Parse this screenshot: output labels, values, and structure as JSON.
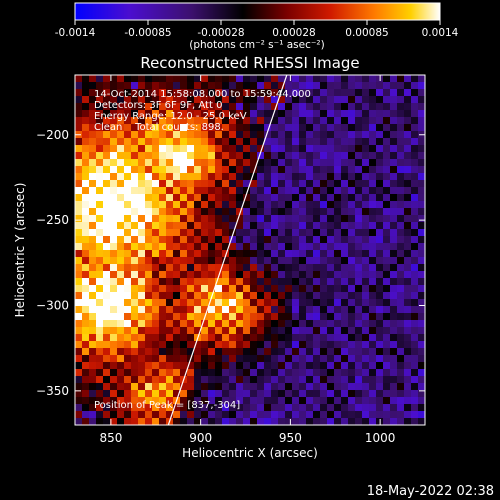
{
  "chart_data": {
    "type": "heatmap",
    "title": "Reconstructed RHESSI Image",
    "xlabel": "Heliocentric X (arcsec)",
    "ylabel": "Heliocentric Y (arcsec)",
    "xlim": [
      830,
      1025
    ],
    "ylim": [
      -370,
      -165
    ],
    "x_ticks": [
      850,
      900,
      950,
      1000
    ],
    "y_ticks": [
      -200,
      -250,
      -300,
      -350
    ],
    "colorbar": {
      "range": [
        -0.0014,
        0.0014
      ],
      "ticks": [
        "-0.0014",
        "-0.00085",
        "-0.00028",
        "0.00028",
        "0.00085",
        "0.0014"
      ],
      "unit_label": "(photons cm⁻² s⁻¹ asec⁻²)",
      "colors": [
        "#0000ff",
        "#4b0ecf",
        "#3c106e",
        "#000000",
        "#7a0000",
        "#d01a00",
        "#ff7a00",
        "#ffd000",
        "#ffffff"
      ]
    },
    "info_lines": [
      "14-Oct-2014 15:58:08.000 to 15:59:44.000",
      "Detectors: 3F 6F 9F, Att 0",
      "Energy Range: 12.0 - 25.0 keV",
      "Clean    Total counts: 898."
    ],
    "peak_label": "Position of Peak = [837,-304]",
    "limb_line": {
      "x": [
        882,
        948
      ],
      "y": [
        -370,
        -165
      ]
    },
    "grid": false,
    "legend": "none"
  },
  "footer": {
    "date": "18-May-2022 02:38"
  }
}
